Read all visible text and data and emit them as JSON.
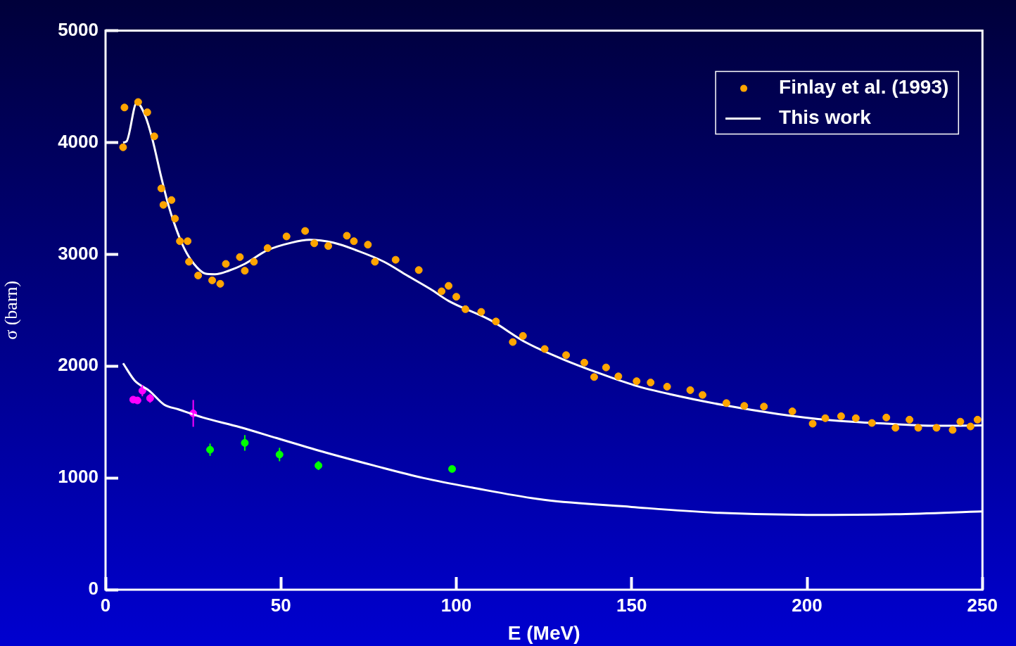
{
  "chart_data": {
    "type": "scatter",
    "xlabel": "E (MeV)",
    "ylabel": "σ (barn)",
    "xlim": [
      0,
      250
    ],
    "ylim": [
      0,
      5000
    ],
    "xticks": [
      0,
      50,
      100,
      150,
      200,
      250
    ],
    "yticks": [
      0,
      1000,
      2000,
      3000,
      4000,
      5000
    ],
    "legend": "top right",
    "grid": false,
    "series": [
      {
        "name": "Finlay et al. (1993)",
        "marker": "circle",
        "color": "#ffa500",
        "x": [
          5,
          5.4,
          9.3,
          11.9,
          13.9,
          15.9,
          16.5,
          18.8,
          19.8,
          21.2,
          23.4,
          23.8,
          26.4,
          30.4,
          32.7,
          34.3,
          38.3,
          39.7,
          42.3,
          46.2,
          51.6,
          56.9,
          59.5,
          63.5,
          68.8,
          70.8,
          74.8,
          76.8,
          82.7,
          89.3,
          95.8,
          97.8,
          100,
          102.6,
          107.1,
          111.3,
          116.1,
          119,
          125.2,
          131.3,
          136.5,
          139.3,
          142.7,
          146.2,
          151.4,
          155.4,
          160.1,
          166.7,
          170.2,
          177,
          182.1,
          187.7,
          195.8,
          201.6,
          205.2,
          209.7,
          213.9,
          218.5,
          222.6,
          225.2,
          229.2,
          231.7,
          236.9,
          241.5,
          243.7,
          246.6,
          248.6
        ],
        "values": [
          3957,
          4313,
          4362,
          4270,
          4055,
          3589,
          3442,
          3485,
          3319,
          3117,
          3117,
          2933,
          2810,
          2767,
          2736,
          2914,
          2975,
          2853,
          2933,
          3055,
          3160,
          3209,
          3098,
          3074,
          3166,
          3117,
          3086,
          2933,
          2951,
          2859,
          2669,
          2718,
          2620,
          2509,
          2485,
          2399,
          2215,
          2270,
          2153,
          2098,
          2031,
          1902,
          1988,
          1908,
          1865,
          1853,
          1816,
          1785,
          1742,
          1669,
          1644,
          1638,
          1595,
          1485,
          1534,
          1552,
          1534,
          1491,
          1540,
          1448,
          1521,
          1448,
          1448,
          1429,
          1503,
          1460,
          1521
        ]
      },
      {
        "name": "This work",
        "type": "line",
        "marker": "none",
        "color": "#ffffff",
        "x": [
          5,
          6,
          8.9,
          11.3,
          13.3,
          15.9,
          17.9,
          19.8,
          22.4,
          25.2,
          28.4,
          31.2,
          35.1,
          39.7,
          46.2,
          53,
          58.1,
          64.9,
          71.4,
          79.4,
          86,
          92.7,
          97.8,
          109.7,
          120,
          130.4,
          140.5,
          150.8,
          161,
          176.4,
          191.9,
          207,
          222.6,
          237.9,
          250
        ],
        "values": [
          4000,
          4010,
          4356,
          4240,
          4037,
          3687,
          3442,
          3258,
          3055,
          2914,
          2828,
          2822,
          2853,
          2914,
          3037,
          3104,
          3129,
          3104,
          3037,
          2933,
          2810,
          2687,
          2583,
          2411,
          2209,
          2061,
          1939,
          1828,
          1748,
          1650,
          1571,
          1515,
          1485,
          1466,
          1470
        ]
      },
      {
        "type": "line",
        "marker": "none",
        "color": "#ffffff",
        "x": [
          5,
          8.3,
          12.5,
          16.7,
          20.8,
          27.8,
          38.3,
          48.8,
          62.7,
          76.6,
          90.5,
          104.4,
          125,
          150,
          175,
          200,
          225,
          250
        ],
        "values": [
          2025,
          1871,
          1779,
          1656,
          1613,
          1540,
          1454,
          1356,
          1227,
          1110,
          1000,
          914,
          804,
          740,
          687,
          669,
          675,
          700
        ]
      },
      {
        "marker": "circle",
        "color": "#ff00ff",
        "x": [
          7.9,
          9.1,
          10.5,
          12.7,
          25
        ],
        "values": [
          1700,
          1693,
          1780,
          1712,
          1577
        ],
        "errors": [
          null,
          null,
          50,
          40,
          120
        ]
      },
      {
        "marker": "circle",
        "color": "#00ff00",
        "x": [
          29.8,
          39.7,
          49.6,
          60.7,
          98.8
        ],
        "values": [
          1252,
          1313,
          1209,
          1110,
          1080
        ],
        "errors": [
          55,
          70,
          60,
          40,
          null
        ]
      }
    ]
  }
}
